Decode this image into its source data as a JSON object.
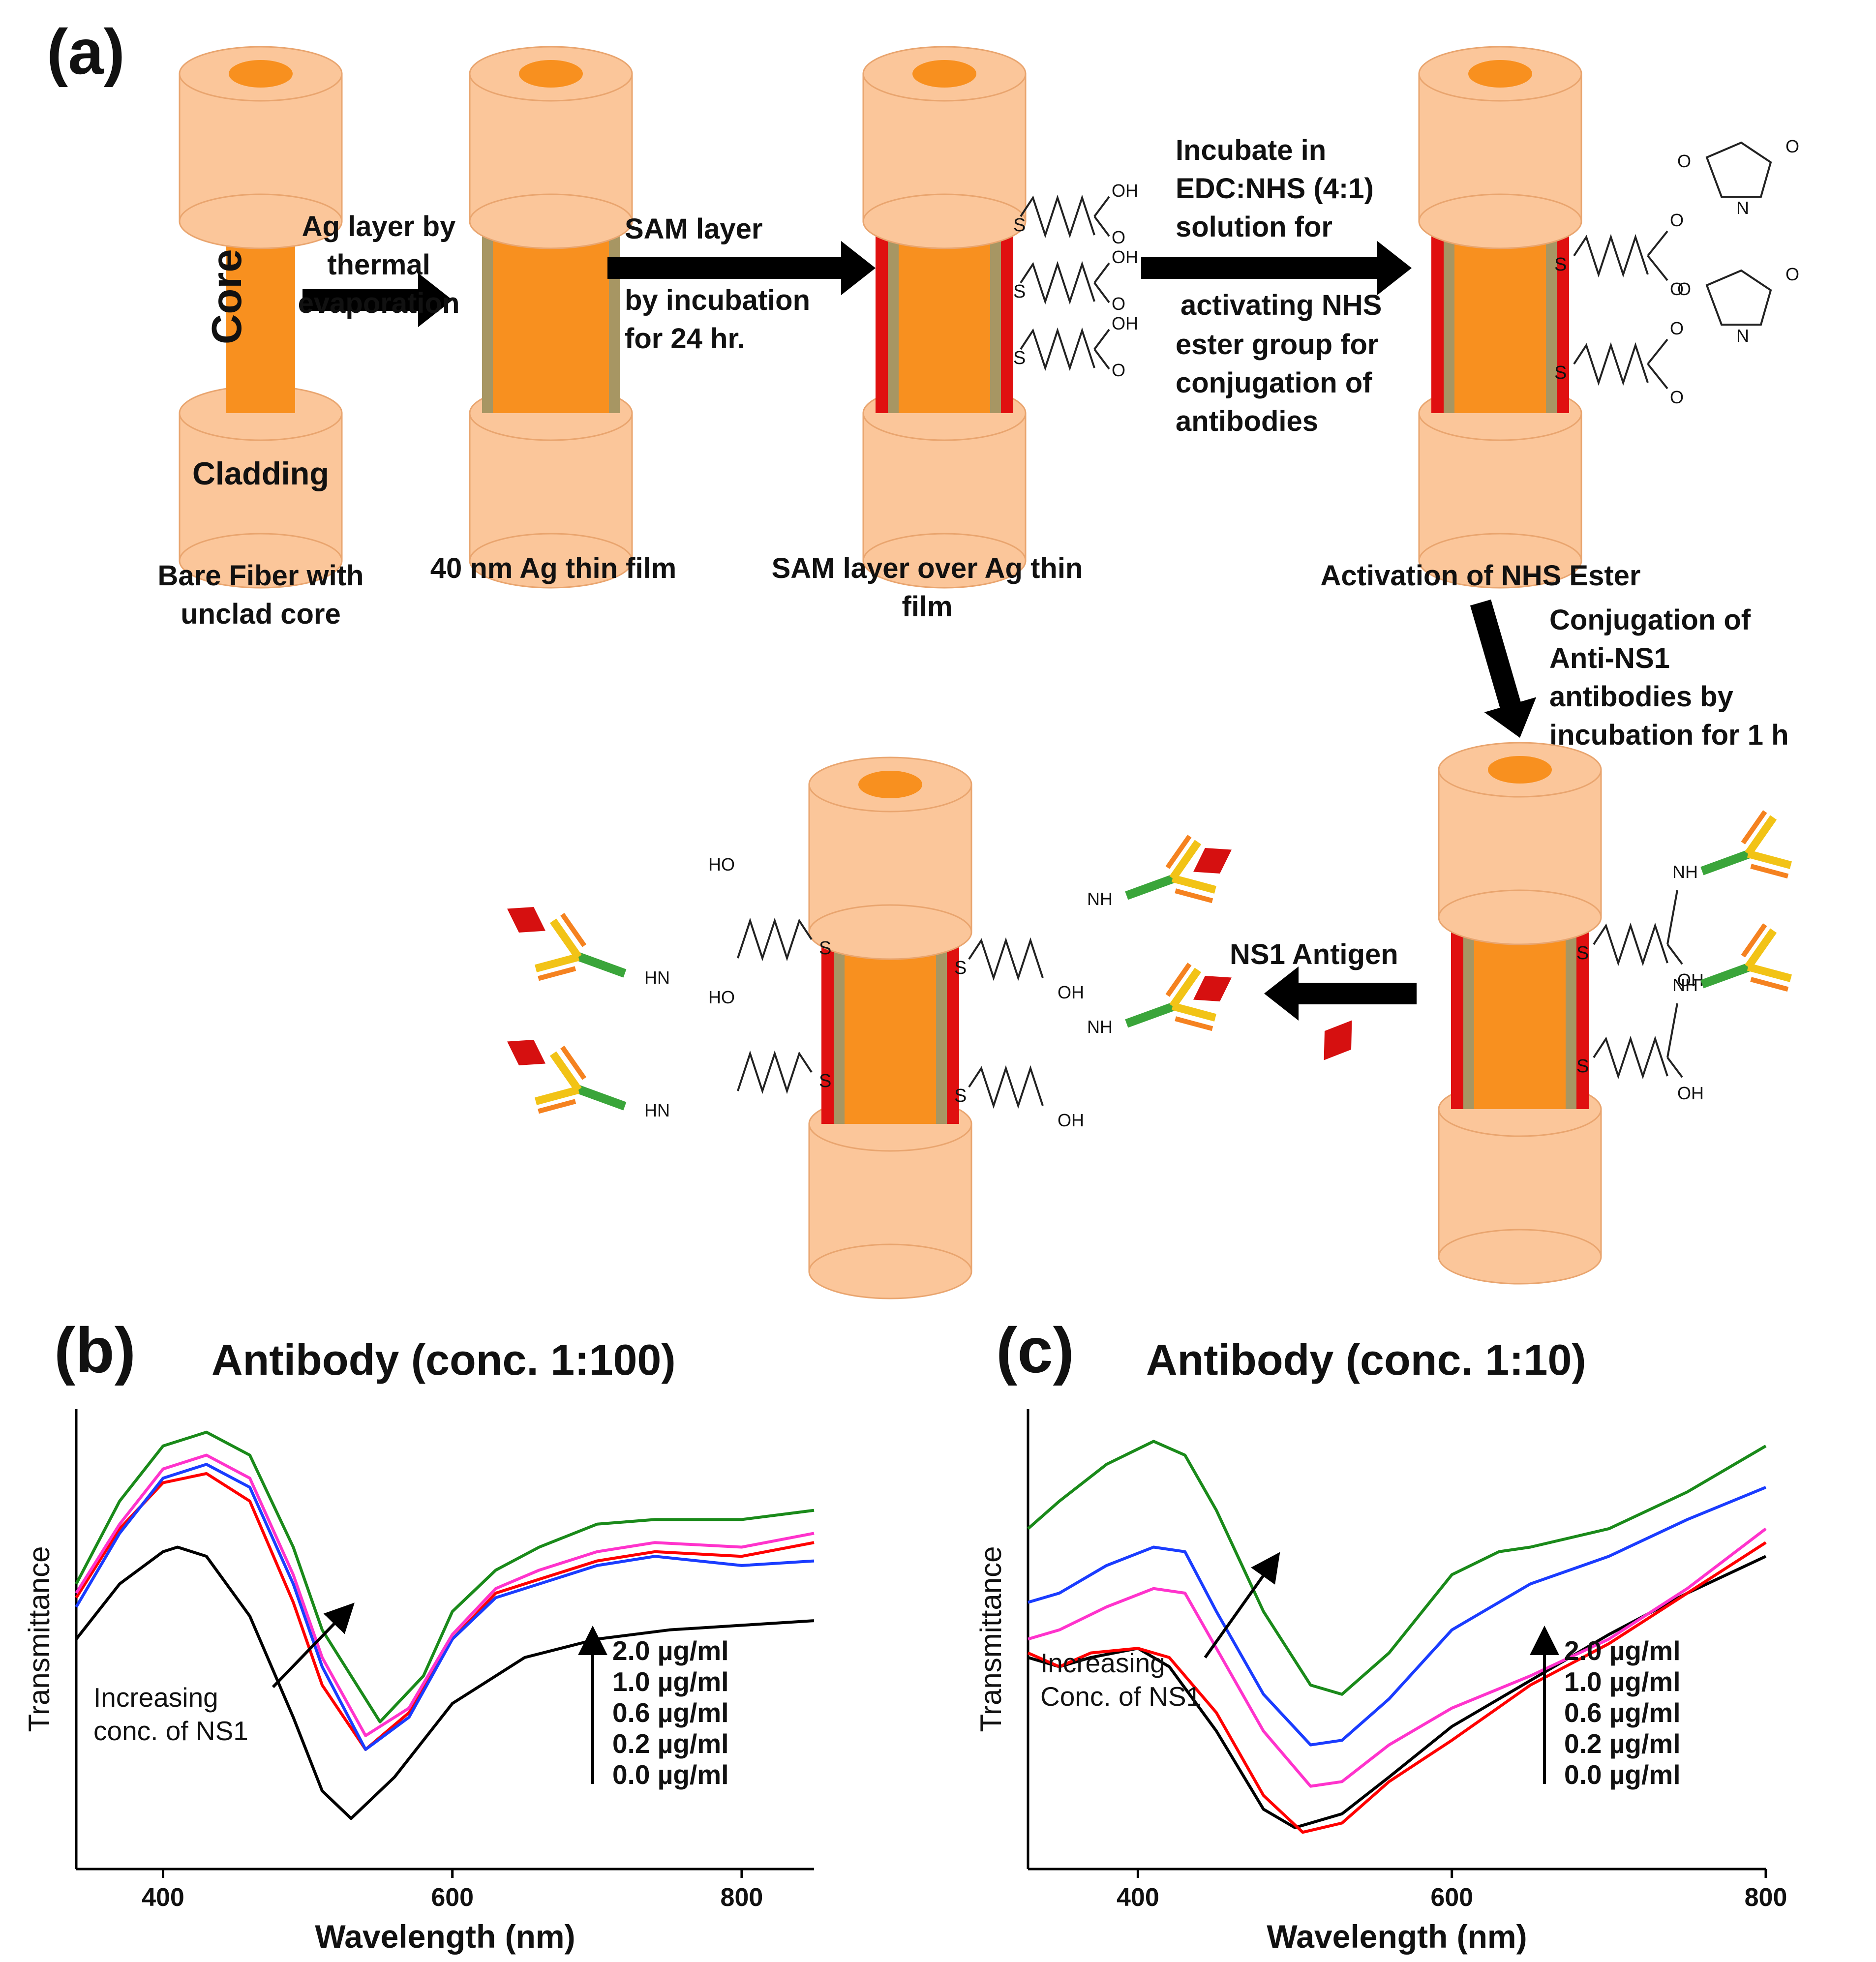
{
  "panels": {
    "a": "(a)",
    "b": "(b)",
    "c": "(c)"
  },
  "labels": {
    "core": "Core",
    "cladding": "Cladding"
  },
  "captions": {
    "bare_fiber": [
      "Bare Fiber with",
      "unclad core"
    ],
    "ag_film": [
      "40 nm Ag thin film"
    ],
    "sam_layer": [
      "SAM layer over Ag thin",
      "film"
    ],
    "nhs_activation": [
      "Activation of NHS Ester"
    ]
  },
  "steps": {
    "ag_deposition": [
      "Ag layer by",
      "thermal",
      "evaporation"
    ],
    "sam_incubation": [
      "SAM layer",
      "by incubation",
      "for 24 hr."
    ],
    "edc_nhs": [
      "Incubate in",
      "EDC:NHS (4:1)",
      "solution for",
      "activating NHS",
      "ester group for",
      "conjugation of",
      "antibodies"
    ],
    "antibody_conjugation": [
      "Conjugation of",
      "Anti-NS1",
      "antibodies by",
      "incubation for 1 h"
    ],
    "antigen": [
      "NS1 Antigen"
    ]
  },
  "chem": {
    "oh": "OH",
    "ho": "HO",
    "s": "S",
    "o": "O",
    "n": "N",
    "nh": "NH",
    "hn": "HN"
  },
  "colors": {
    "cladding": "#fbc69a",
    "cladding_edge": "#e9a56f",
    "core": "#f8901f",
    "silver": "#a79663",
    "sam": "#e01010",
    "arrow": "#000000",
    "antibody_green": "#3aa53a",
    "antibody_yellow": "#f2c316",
    "antibody_orange": "#f58220",
    "antigen": "#d61010"
  },
  "chart_data": [
    {
      "panel": "(b)",
      "type": "line",
      "title": "Antibody (conc. 1:100)",
      "xlabel": "Wavelength (nm)",
      "ylabel": "Transmittance",
      "xlim": [
        340,
        850
      ],
      "ylim": [
        0.0,
        1.0
      ],
      "xticks": [
        400,
        600,
        800
      ],
      "annotation": [
        "Increasing",
        "conc. of NS1"
      ],
      "legend_arrow": true,
      "series": [
        {
          "name": "0.0 µg/ml",
          "color": "#000000",
          "x": [
            340,
            370,
            400,
            410,
            430,
            460,
            490,
            510,
            530,
            560,
            600,
            650,
            700,
            750,
            800,
            850
          ],
          "y": [
            0.5,
            0.62,
            0.69,
            0.7,
            0.68,
            0.55,
            0.33,
            0.17,
            0.11,
            0.2,
            0.36,
            0.46,
            0.5,
            0.52,
            0.53,
            0.54
          ]
        },
        {
          "name": "0.2 µg/ml",
          "color": "#ff0000",
          "x": [
            340,
            370,
            400,
            430,
            460,
            490,
            510,
            540,
            570,
            600,
            630,
            660,
            700,
            740,
            800,
            850
          ],
          "y": [
            0.59,
            0.74,
            0.84,
            0.86,
            0.8,
            0.58,
            0.4,
            0.26,
            0.34,
            0.5,
            0.6,
            0.63,
            0.67,
            0.69,
            0.68,
            0.71
          ]
        },
        {
          "name": "0.6 µg/ml",
          "color": "#1a3cff",
          "x": [
            340,
            370,
            400,
            430,
            460,
            490,
            510,
            540,
            570,
            600,
            630,
            660,
            700,
            740,
            800,
            850
          ],
          "y": [
            0.57,
            0.73,
            0.85,
            0.88,
            0.83,
            0.62,
            0.44,
            0.26,
            0.33,
            0.5,
            0.59,
            0.62,
            0.66,
            0.68,
            0.66,
            0.67
          ]
        },
        {
          "name": "1.0 µg/ml",
          "color": "#ff33cc",
          "x": [
            340,
            370,
            400,
            430,
            460,
            490,
            510,
            540,
            570,
            600,
            630,
            660,
            700,
            740,
            800,
            850
          ],
          "y": [
            0.6,
            0.75,
            0.87,
            0.9,
            0.85,
            0.64,
            0.46,
            0.29,
            0.35,
            0.51,
            0.61,
            0.65,
            0.69,
            0.71,
            0.7,
            0.73
          ]
        },
        {
          "name": "2.0 µg/ml",
          "color": "#1a8a1a",
          "x": [
            340,
            370,
            400,
            430,
            460,
            490,
            510,
            550,
            580,
            600,
            630,
            660,
            700,
            740,
            800,
            850
          ],
          "y": [
            0.62,
            0.8,
            0.92,
            0.95,
            0.9,
            0.7,
            0.52,
            0.32,
            0.42,
            0.56,
            0.65,
            0.7,
            0.75,
            0.76,
            0.76,
            0.78
          ]
        }
      ]
    },
    {
      "panel": "(c)",
      "type": "line",
      "title": "Antibody (conc. 1:10)",
      "xlabel": "Wavelength (nm)",
      "ylabel": "Transmittance",
      "xlim": [
        330,
        800
      ],
      "ylim": [
        0.0,
        1.0
      ],
      "xticks": [
        400,
        600,
        800
      ],
      "annotation": [
        "Increasing",
        "Conc. of NS1"
      ],
      "legend_arrow": true,
      "series": [
        {
          "name": "0.0 µg/ml",
          "color": "#000000",
          "x": [
            330,
            350,
            370,
            400,
            420,
            450,
            480,
            500,
            530,
            560,
            600,
            650,
            700,
            750,
            800
          ],
          "y": [
            0.46,
            0.44,
            0.46,
            0.48,
            0.44,
            0.3,
            0.13,
            0.09,
            0.12,
            0.2,
            0.31,
            0.41,
            0.51,
            0.6,
            0.68
          ]
        },
        {
          "name": "0.2 µg/ml",
          "color": "#ff0000",
          "x": [
            330,
            350,
            370,
            400,
            420,
            450,
            480,
            505,
            530,
            560,
            600,
            650,
            700,
            750,
            800
          ],
          "y": [
            0.47,
            0.44,
            0.47,
            0.48,
            0.46,
            0.34,
            0.16,
            0.08,
            0.1,
            0.19,
            0.28,
            0.4,
            0.49,
            0.6,
            0.71
          ]
        },
        {
          "name": "0.6 µg/ml",
          "color": "#1a3cff",
          "x": [
            330,
            350,
            380,
            410,
            430,
            450,
            480,
            510,
            530,
            560,
            600,
            650,
            700,
            750,
            800
          ],
          "y": [
            0.58,
            0.6,
            0.66,
            0.7,
            0.69,
            0.56,
            0.38,
            0.27,
            0.28,
            0.37,
            0.52,
            0.62,
            0.68,
            0.76,
            0.83
          ]
        },
        {
          "name": "1.0 µg/ml",
          "color": "#ff33cc",
          "x": [
            330,
            350,
            380,
            410,
            430,
            450,
            480,
            510,
            530,
            560,
            600,
            650,
            700,
            750,
            800
          ],
          "y": [
            0.5,
            0.52,
            0.57,
            0.61,
            0.6,
            0.48,
            0.3,
            0.18,
            0.19,
            0.27,
            0.35,
            0.42,
            0.5,
            0.61,
            0.74
          ]
        },
        {
          "name": "2.0 µg/ml",
          "color": "#1a8a1a",
          "x": [
            330,
            350,
            380,
            410,
            430,
            450,
            480,
            510,
            530,
            560,
            600,
            630,
            650,
            700,
            750,
            800
          ],
          "y": [
            0.74,
            0.8,
            0.88,
            0.93,
            0.9,
            0.78,
            0.56,
            0.4,
            0.38,
            0.47,
            0.64,
            0.69,
            0.7,
            0.74,
            0.82,
            0.92
          ]
        }
      ]
    }
  ],
  "legend_labels": [
    "2.0 µg/ml",
    "1.0 µg/ml",
    "0.6 µg/ml",
    "0.2 µg/ml",
    "0.0 µg/ml"
  ]
}
